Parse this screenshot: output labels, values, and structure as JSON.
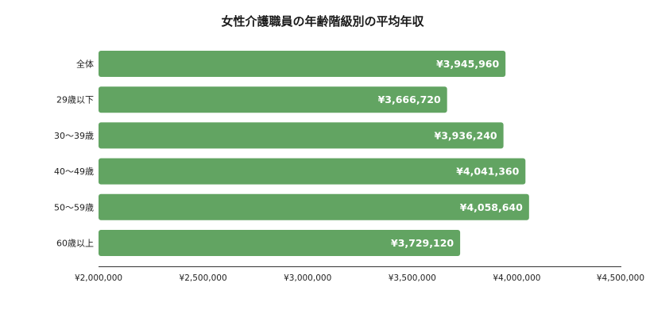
{
  "chart_data": {
    "type": "bar",
    "orientation": "horizontal",
    "title": "女性介護職員の年齢階級別の平均年収",
    "categories": [
      "全体",
      "29歳以下",
      "30〜39歳",
      "40〜49歳",
      "50〜59歳",
      "60歳以上"
    ],
    "values": [
      3945960,
      3666720,
      3936240,
      4041360,
      4058640,
      3729120
    ],
    "value_labels": [
      "¥3,945,960",
      "¥3,666,720",
      "¥3,936,240",
      "¥4,041,360",
      "¥4,058,640",
      "¥3,729,120"
    ],
    "xlim": [
      2000000,
      4500000
    ],
    "x_ticks": [
      2000000,
      2500000,
      3000000,
      3500000,
      4000000,
      4500000
    ],
    "x_tick_labels": [
      "¥2,000,000",
      "¥2,500,000",
      "¥3,000,000",
      "¥3,500,000",
      "¥4,000,000",
      "¥4,500,000"
    ],
    "xlabel": "",
    "ylabel": "",
    "grid": false,
    "legend": "none",
    "bar_color": "#62a462"
  }
}
